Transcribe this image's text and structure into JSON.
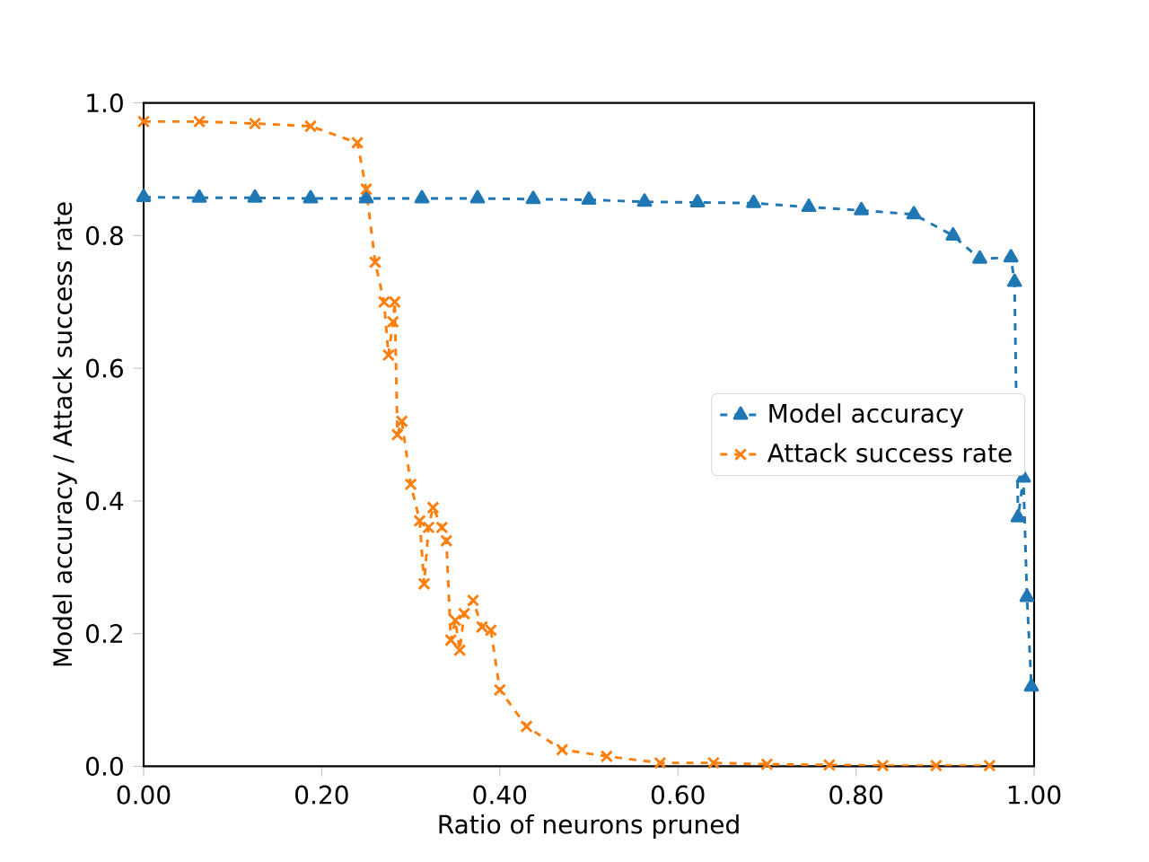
{
  "chart_data": {
    "type": "line",
    "xlabel": "Ratio of neurons pruned",
    "ylabel": "Model accuracy / Attack success rate",
    "xlim": [
      0,
      1
    ],
    "ylim": [
      0,
      1
    ],
    "xticks": [
      {
        "value": 0,
        "label": "0.00"
      },
      {
        "value": 0.2,
        "label": "0.20"
      },
      {
        "value": 0.4,
        "label": "0.40"
      },
      {
        "value": 0.6,
        "label": "0.60"
      },
      {
        "value": 0.8,
        "label": "0.80"
      },
      {
        "value": 1,
        "label": "1.00"
      }
    ],
    "yticks": [
      {
        "value": 0,
        "label": "0.0"
      },
      {
        "value": 0.2,
        "label": "0.2"
      },
      {
        "value": 0.4,
        "label": "0.4"
      },
      {
        "value": 0.6,
        "label": "0.6"
      },
      {
        "value": 0.8,
        "label": "0.8"
      },
      {
        "value": 1,
        "label": "1.0"
      }
    ],
    "legend": "right",
    "grid": false,
    "line_style": "dashed",
    "series": [
      {
        "name": "Model accuracy",
        "color": "#1f77b4",
        "marker": "triangle",
        "x": [
          0,
          0.0625,
          0.125,
          0.1875,
          0.25,
          0.3125,
          0.375,
          0.4375,
          0.5,
          0.5625,
          0.622,
          0.685,
          0.747,
          0.806,
          0.865,
          0.909,
          0.939,
          0.974,
          0.978,
          0.982,
          0.988,
          0.992,
          0.997
        ],
        "values": [
          0.858,
          0.857,
          0.857,
          0.856,
          0.856,
          0.856,
          0.856,
          0.855,
          0.854,
          0.851,
          0.85,
          0.849,
          0.843,
          0.838,
          0.832,
          0.8,
          0.765,
          0.767,
          0.73,
          0.375,
          0.435,
          0.255,
          0.12
        ]
      },
      {
        "name": "Attack success rate",
        "color": "#ff7f0e",
        "marker": "cross",
        "x": [
          0,
          0.0625,
          0.125,
          0.1875,
          0.24,
          0.25,
          0.26,
          0.27,
          0.275,
          0.28,
          0.282,
          0.285,
          0.29,
          0.3,
          0.31,
          0.315,
          0.32,
          0.325,
          0.335,
          0.34,
          0.345,
          0.35,
          0.355,
          0.36,
          0.37,
          0.38,
          0.39,
          0.4,
          0.43,
          0.47,
          0.52,
          0.58,
          0.64,
          0.7,
          0.77,
          0.83,
          0.89,
          0.95
        ],
        "values": [
          0.972,
          0.972,
          0.969,
          0.965,
          0.94,
          0.87,
          0.76,
          0.7,
          0.62,
          0.67,
          0.7,
          0.5,
          0.52,
          0.425,
          0.37,
          0.275,
          0.36,
          0.39,
          0.36,
          0.34,
          0.19,
          0.22,
          0.175,
          0.23,
          0.25,
          0.21,
          0.205,
          0.115,
          0.06,
          0.025,
          0.015,
          0.005,
          0.005,
          0.003,
          0.002,
          0.001,
          0.001,
          0.001
        ]
      }
    ]
  }
}
